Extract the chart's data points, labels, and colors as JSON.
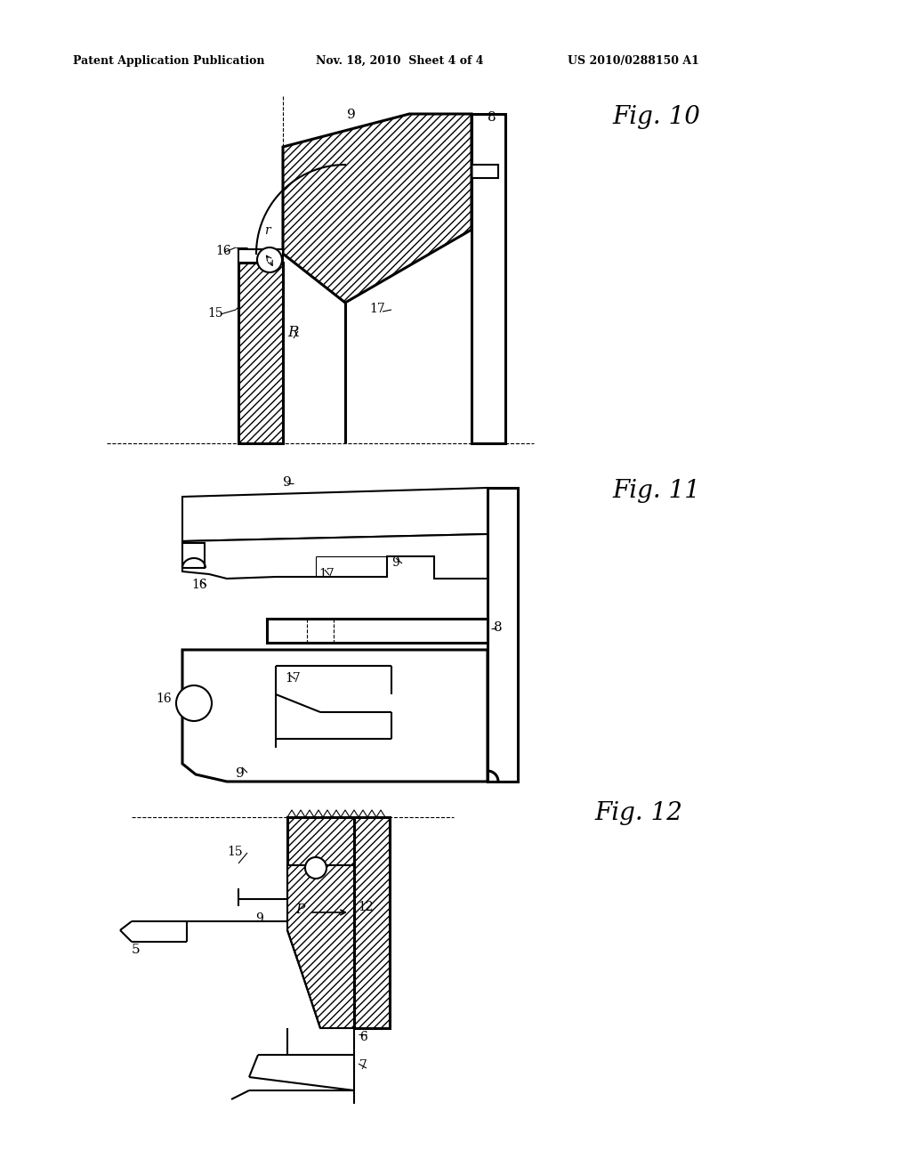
{
  "header_left": "Patent Application Publication",
  "header_mid": "Nov. 18, 2010  Sheet 4 of 4",
  "header_right": "US 2010/0288150 A1",
  "bg_color": "#ffffff",
  "lw": 1.5,
  "lw2": 2.2,
  "lw_thin": 0.8
}
